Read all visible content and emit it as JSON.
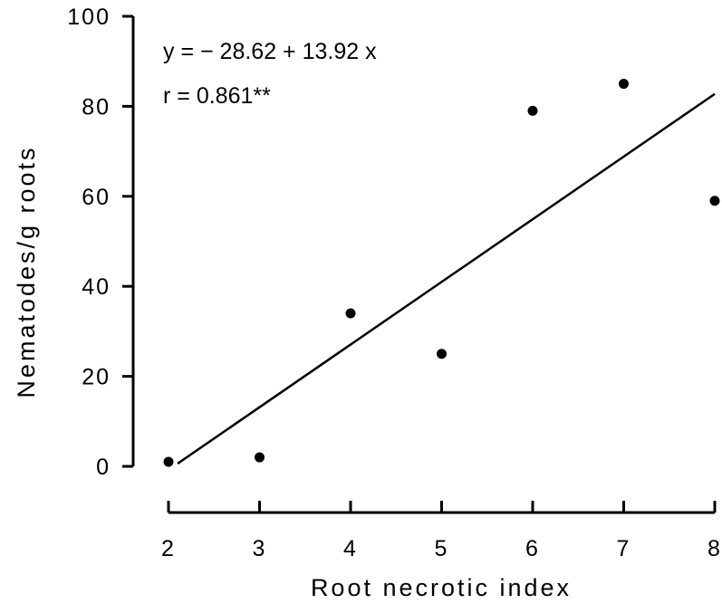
{
  "chart_data": {
    "type": "scatter",
    "xlabel": "Root necrotic index",
    "ylabel": "Nematodes/g roots",
    "xlim": [
      2,
      8
    ],
    "ylim": [
      0,
      100
    ],
    "xticks": [
      "2",
      "3",
      "4",
      "5",
      "6",
      "7",
      "8"
    ],
    "yticks": [
      "0",
      "20",
      "40",
      "60",
      "80",
      "100"
    ],
    "grid": false,
    "series": [
      {
        "points": [
          {
            "x": 2,
            "y": 1
          },
          {
            "x": 3,
            "y": 2
          },
          {
            "x": 4,
            "y": 34
          },
          {
            "x": 5,
            "y": 25
          },
          {
            "x": 6,
            "y": 79
          },
          {
            "x": 7,
            "y": 85
          },
          {
            "x": 8,
            "y": 59
          }
        ]
      }
    ],
    "regression": {
      "intercept": -28.62,
      "slope": 13.92,
      "x_start": 2.1,
      "x_end": 8
    },
    "annotations": {
      "equation": "y = − 28.62 + 13.92 x",
      "r": "r = 0.861**"
    }
  }
}
